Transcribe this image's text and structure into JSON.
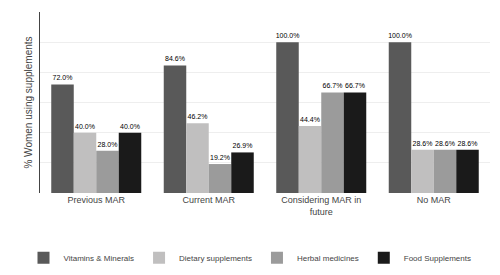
{
  "chart_data": {
    "type": "bar",
    "categories": [
      "Previous MAR",
      "Current MAR",
      "Considering MAR in\nfuture",
      "No MAR"
    ],
    "ylabel": "% Women using supplements",
    "series": [
      {
        "name": "Vitamins & Minerals",
        "color": "#595959",
        "values": [
          72.0,
          84.6,
          100.0,
          100.0
        ],
        "value_labels": [
          "72.0%",
          "84.6%",
          "100.0%",
          "100.0%"
        ]
      },
      {
        "name": "Dietary supplements",
        "color": "#c0bfbf",
        "values": [
          40.0,
          46.2,
          44.4,
          28.6
        ],
        "value_labels": [
          "40.0%",
          "46.2%",
          "44.4%",
          "28.6%"
        ]
      },
      {
        "name": "Herbal medicines",
        "color": "#9b9b9b",
        "values": [
          28.0,
          19.2,
          66.7,
          28.6
        ],
        "value_labels": [
          "28.0%",
          "19.2%",
          "66.7%",
          "28.6%"
        ]
      },
      {
        "name": "Food Supplements",
        "color": "#1a1a1a",
        "values": [
          40.0,
          26.9,
          66.7,
          28.6
        ],
        "value_labels": [
          "40.0%",
          "26.9%",
          "66.7%",
          "28.6%"
        ]
      }
    ],
    "ylim": [
      0,
      120
    ],
    "yticks": [
      0,
      20,
      40,
      60,
      80,
      100
    ],
    "grid": true,
    "data_labels": true,
    "tick_labels": "x",
    "legend": "bottom"
  }
}
